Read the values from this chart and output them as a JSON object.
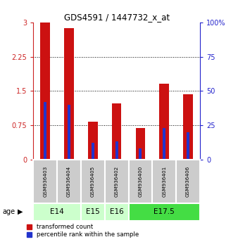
{
  "title": "GDS4591 / 1447732_x_at",
  "samples": [
    "GSM936403",
    "GSM936404",
    "GSM936405",
    "GSM936402",
    "GSM936400",
    "GSM936401",
    "GSM936406"
  ],
  "transformed_counts": [
    3.0,
    2.88,
    0.83,
    1.22,
    0.68,
    1.65,
    1.42
  ],
  "percentile_ranks": [
    42,
    40,
    12,
    13,
    8,
    23,
    20
  ],
  "age_group_spans": [
    {
      "label": "E14",
      "start": 0,
      "end": 2,
      "color": "#ccffcc"
    },
    {
      "label": "E15",
      "start": 2,
      "end": 3,
      "color": "#ccffcc"
    },
    {
      "label": "E16",
      "start": 3,
      "end": 4,
      "color": "#ccffcc"
    },
    {
      "label": "E17.5",
      "start": 4,
      "end": 7,
      "color": "#44dd44"
    }
  ],
  "ylim_left": [
    0,
    3.0
  ],
  "ylim_right": [
    0,
    100
  ],
  "yticks_left": [
    0,
    0.75,
    1.5,
    2.25,
    3.0
  ],
  "ytick_labels_left": [
    "0",
    "0.75",
    "1.5",
    "2.25",
    "3"
  ],
  "yticks_right": [
    0,
    25,
    50,
    75,
    100
  ],
  "ytick_labels_right": [
    "0",
    "25",
    "50",
    "75",
    "100%"
  ],
  "bar_color": "#cc1111",
  "percentile_color": "#2233cc",
  "bar_width": 0.4,
  "background_color": "#ffffff",
  "sample_bg_color": "#cccccc",
  "left_axis_color": "#cc2222",
  "right_axis_color": "#2222cc"
}
